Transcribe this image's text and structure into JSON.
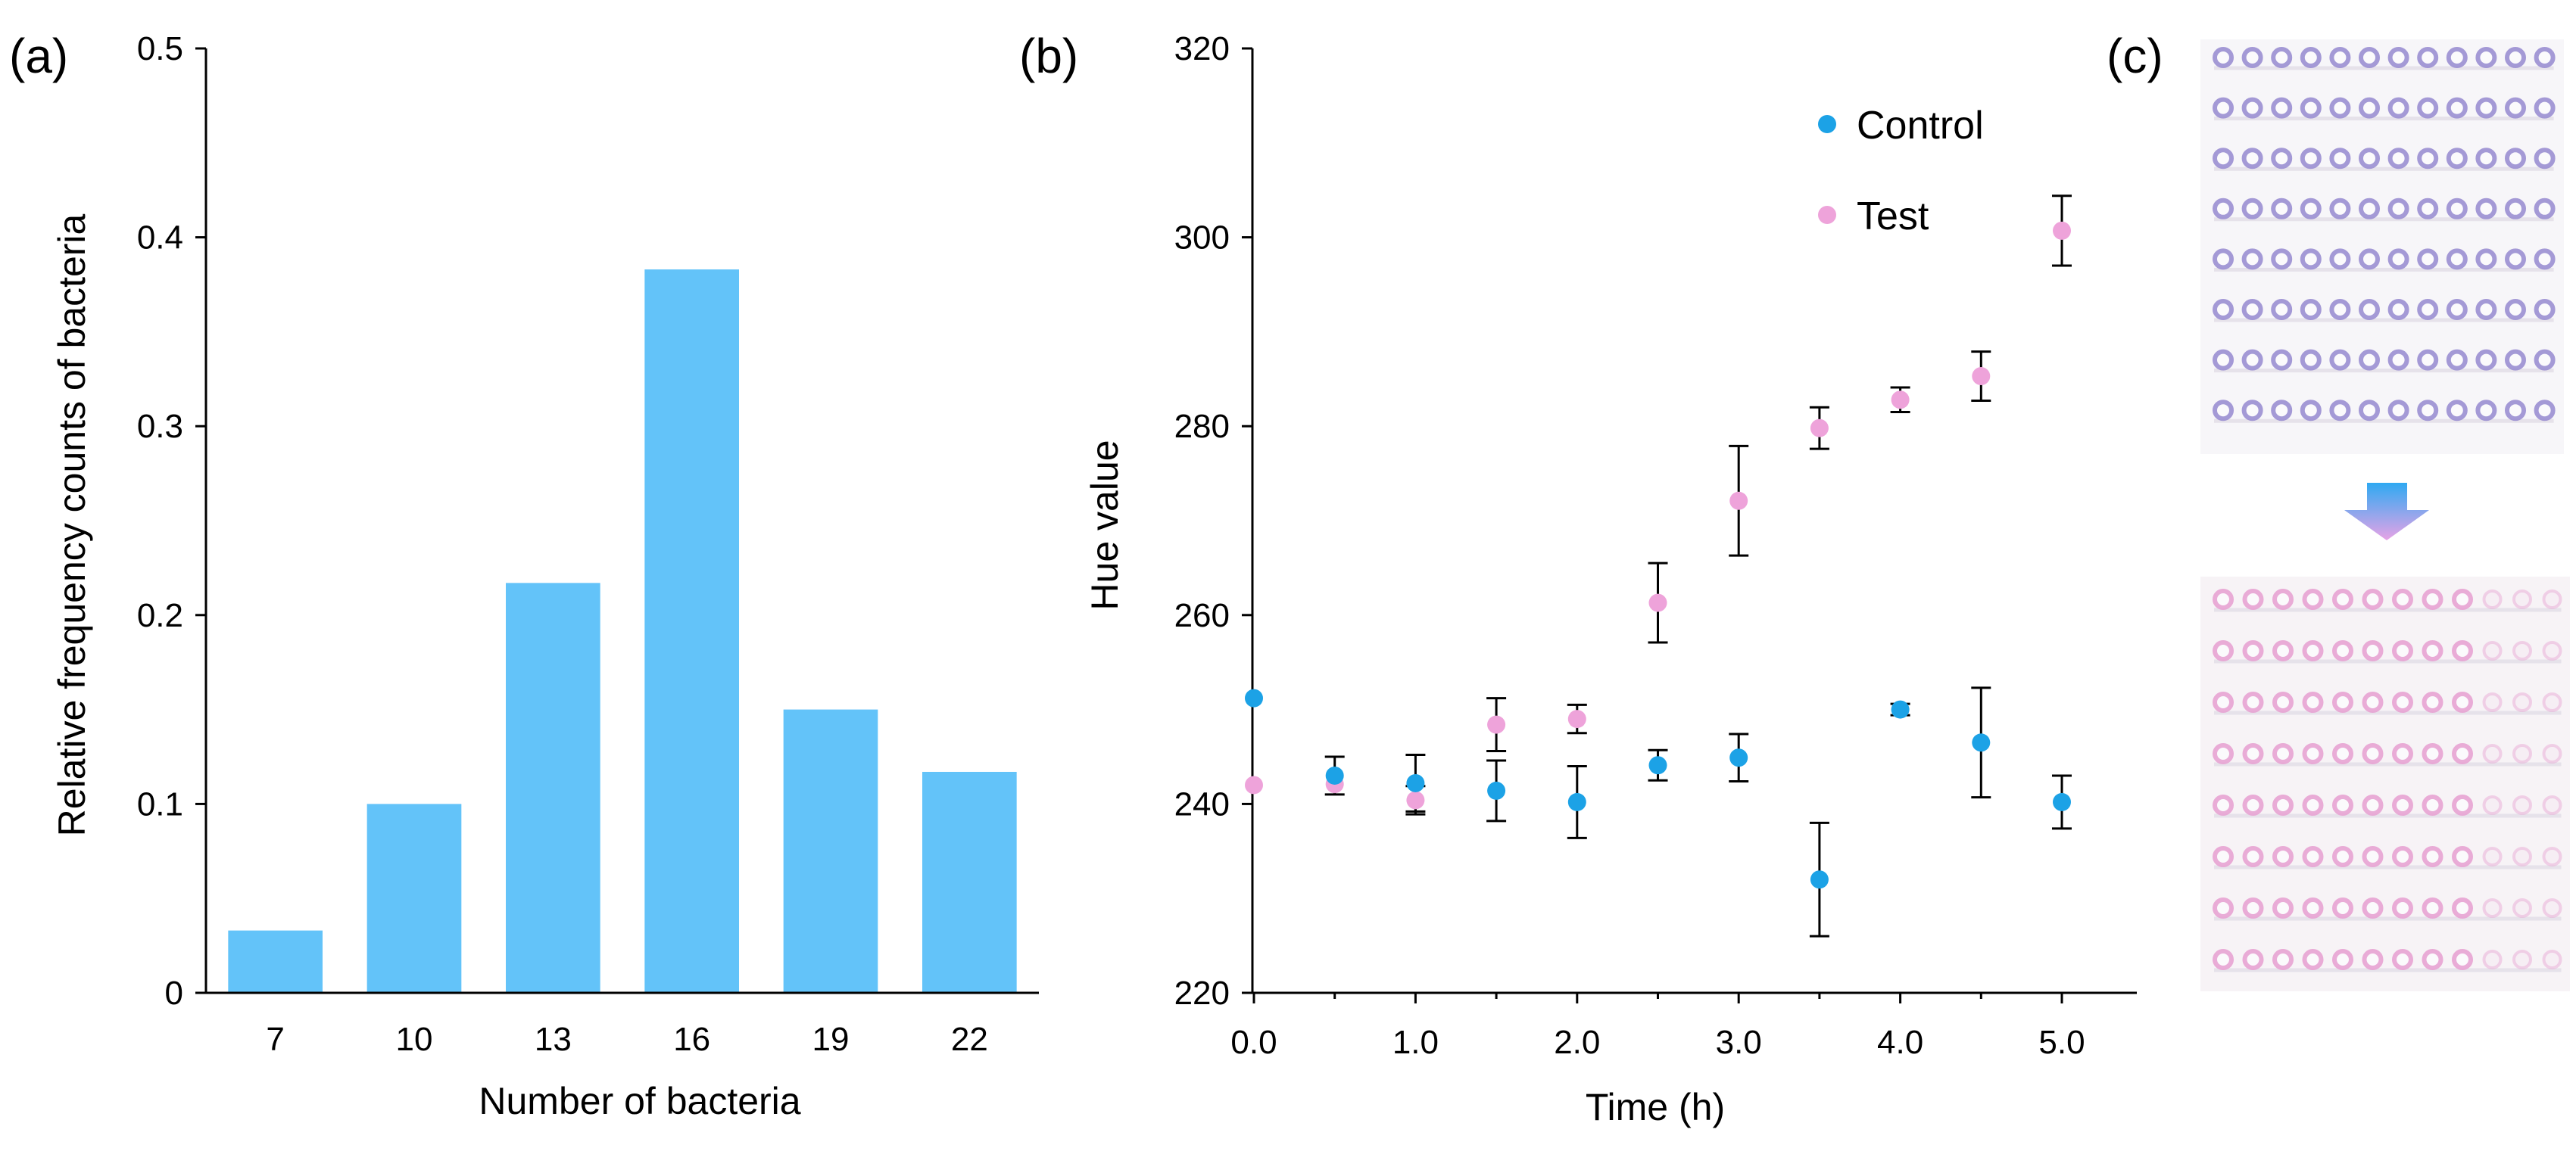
{
  "colors": {
    "bar": "#63C3F9",
    "control": "#1CA2E6",
    "test": "#EEA3DA",
    "axis": "#000000",
    "well_purple": "#9A8FD2",
    "well_pink": "#E7A3D3",
    "arrow_top": "#2FA9F2",
    "arrow_bottom": "#E7A3E6"
  },
  "panels": {
    "a": "(a)",
    "b": "(b)",
    "c": "(c)"
  },
  "chart_data": [
    {
      "id": "a",
      "type": "bar",
      "title": "",
      "xlabel": "Number of bacteria",
      "ylabel": "Relative frequency counts of bacteria",
      "categories": [
        "7",
        "10",
        "13",
        "16",
        "19",
        "22"
      ],
      "values": [
        0.033,
        0.1,
        0.217,
        0.383,
        0.15,
        0.117
      ],
      "ylim": [
        0,
        0.5
      ],
      "yticks": [
        0,
        0.1,
        0.2,
        0.3,
        0.4,
        0.5
      ],
      "ytick_labels": [
        "0",
        "0.1",
        "0.2",
        "0.3",
        "0.4",
        "0.5"
      ],
      "grid": false
    },
    {
      "id": "b",
      "type": "scatter",
      "title": "",
      "xlabel": "Time (h)",
      "ylabel": "Hue value",
      "xlim": [
        0,
        5.4
      ],
      "ylim": [
        220,
        320
      ],
      "xticks": [
        0,
        1,
        2,
        3,
        4,
        5
      ],
      "xtick_labels": [
        "0.0",
        "1.0",
        "2.0",
        "3.0",
        "4.0",
        "5.0"
      ],
      "yticks": [
        220,
        240,
        260,
        280,
        300,
        320
      ],
      "ytick_labels": [
        "220",
        "240",
        "260",
        "280",
        "300",
        "320"
      ],
      "legend_position": "top-right",
      "grid": false,
      "series": [
        {
          "name": "Control",
          "x": [
            0,
            0.5,
            1.0,
            1.5,
            2.0,
            2.5,
            3.0,
            3.5,
            4.0,
            4.5,
            5.0
          ],
          "y": [
            251.2,
            243.0,
            242.2,
            241.4,
            240.2,
            244.1,
            244.9,
            232.0,
            250.0,
            246.5,
            240.2
          ],
          "err": [
            0,
            2.0,
            3.0,
            3.2,
            3.8,
            1.6,
            2.5,
            6.0,
            0.6,
            5.8,
            2.8
          ]
        },
        {
          "name": "Test",
          "x": [
            0,
            0.5,
            1.0,
            1.5,
            2.0,
            2.5,
            3.0,
            3.5,
            4.0,
            4.5,
            5.0
          ],
          "y": [
            242.0,
            242.1,
            240.4,
            248.4,
            249.0,
            261.3,
            272.1,
            279.8,
            282.8,
            285.3,
            300.7
          ],
          "err": [
            0,
            0,
            1.5,
            2.8,
            1.5,
            4.2,
            5.8,
            2.2,
            1.3,
            2.6,
            3.7
          ]
        }
      ]
    }
  ],
  "photo": {
    "description_rows": 8,
    "description_cols": 12,
    "top_plate": "purple",
    "bottom_plate": "pink"
  }
}
